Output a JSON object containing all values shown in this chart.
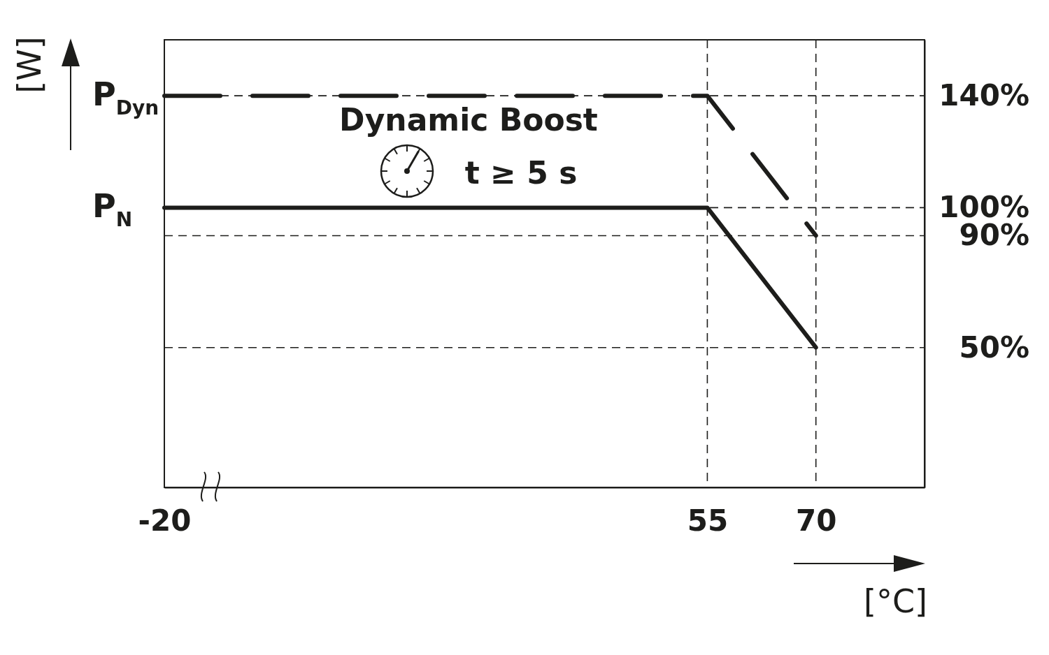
{
  "chart_data": {
    "type": "line",
    "xlabel": "[°C]",
    "ylabel": "[W]",
    "x": [
      -20,
      55,
      70
    ],
    "xlim": [
      -20,
      85
    ],
    "xticks": [
      -20,
      55,
      70
    ],
    "ylim": [
      0,
      160
    ],
    "yticks": [
      {
        "value": 140,
        "label": "140%"
      },
      {
        "value": 100,
        "label": "100%"
      },
      {
        "value": 90,
        "label": "90%"
      },
      {
        "value": 50,
        "label": "50%"
      }
    ],
    "grid": true,
    "series": [
      {
        "color": "#1d1d1b",
        "line_style": "dashed",
        "values": [
          140,
          140,
          90
        ]
      },
      {
        "color": "#1d1d1b",
        "line_style": "solid",
        "values": [
          100,
          100,
          50
        ]
      }
    ],
    "annotations": [
      "Dynamic Boost",
      "t ≥ 5 s",
      {
        "text": "P$_{Dyn}$",
        "x": -20,
        "y": 140
      },
      {
        "text": "P$_{N}$",
        "x": -20,
        "y": 100
      }
    ]
  }
}
